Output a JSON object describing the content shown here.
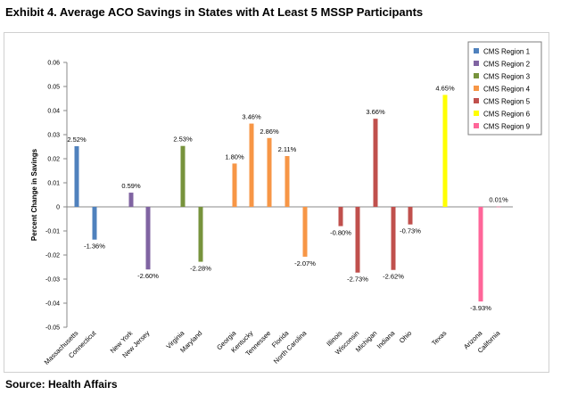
{
  "title": "Exhibit 4. Average ACO Savings in States with At Least 5 MSSP Participants",
  "source": "Source: Health Affairs",
  "chart_data": {
    "type": "bar",
    "ylabel": "Percent Change in Savings",
    "ylim": [
      -0.05,
      0.06
    ],
    "yticks": [
      "0.06",
      "0.05",
      "0.04",
      "0.03",
      "0.02",
      "0.01",
      "0",
      "-0.01",
      "-0.02",
      "-0.03",
      "-0.04",
      "-0.05"
    ],
    "grid": false,
    "legend_position": "top-right",
    "categories": [
      "Massachusetts",
      "Connecticut",
      "New York",
      "New Jersey",
      "Virginia",
      "Maryland",
      "Georgia",
      "Kentucky",
      "Tennessee",
      "Florida",
      "North Carolina",
      "Illinois",
      "Wisconsin",
      "Michigan",
      "Indiana",
      "Ohio",
      "Texas",
      "Arizona",
      "California"
    ],
    "values": [
      0.0252,
      -0.0136,
      0.0059,
      -0.026,
      0.0253,
      -0.0228,
      0.018,
      0.0346,
      0.0286,
      0.0211,
      -0.0207,
      -0.008,
      -0.0273,
      0.0366,
      -0.0262,
      -0.0073,
      0.0465,
      -0.0393,
      0.0001
    ],
    "data_labels": [
      "2.52%",
      "-1.36%",
      "0.59%",
      "-2.60%",
      "2.53%",
      "-2.28%",
      "1.80%",
      "3.46%",
      "2.86%",
      "2.11%",
      "-2.07%",
      "-0.80%",
      "-2.73%",
      "3.66%",
      "-2.62%",
      "-0.73%",
      "4.65%",
      "-3.93%",
      "0.01%"
    ],
    "regions": [
      "CMS Region 1",
      "CMS Region 1",
      "CMS Region 2",
      "CMS Region 2",
      "CMS Region 3",
      "CMS Region 3",
      "CMS Region 4",
      "CMS Region 4",
      "CMS Region 4",
      "CMS Region 4",
      "CMS Region 4",
      "CMS Region 5",
      "CMS Region 5",
      "CMS Region 5",
      "CMS Region 5",
      "CMS Region 5",
      "CMS Region 6",
      "CMS Region 9",
      "CMS Region 9"
    ],
    "legend": [
      {
        "name": "CMS Region 1",
        "color": "#4f81bd"
      },
      {
        "name": "CMS Region 2",
        "color": "#8064a2"
      },
      {
        "name": "CMS Region 3",
        "color": "#77933c"
      },
      {
        "name": "CMS Region 4",
        "color": "#f79646"
      },
      {
        "name": "CMS Region 5",
        "color": "#c0504d"
      },
      {
        "name": "CMS Region 6",
        "color": "#ffff00"
      },
      {
        "name": "CMS Region 9",
        "color": "#ff6699"
      }
    ]
  }
}
